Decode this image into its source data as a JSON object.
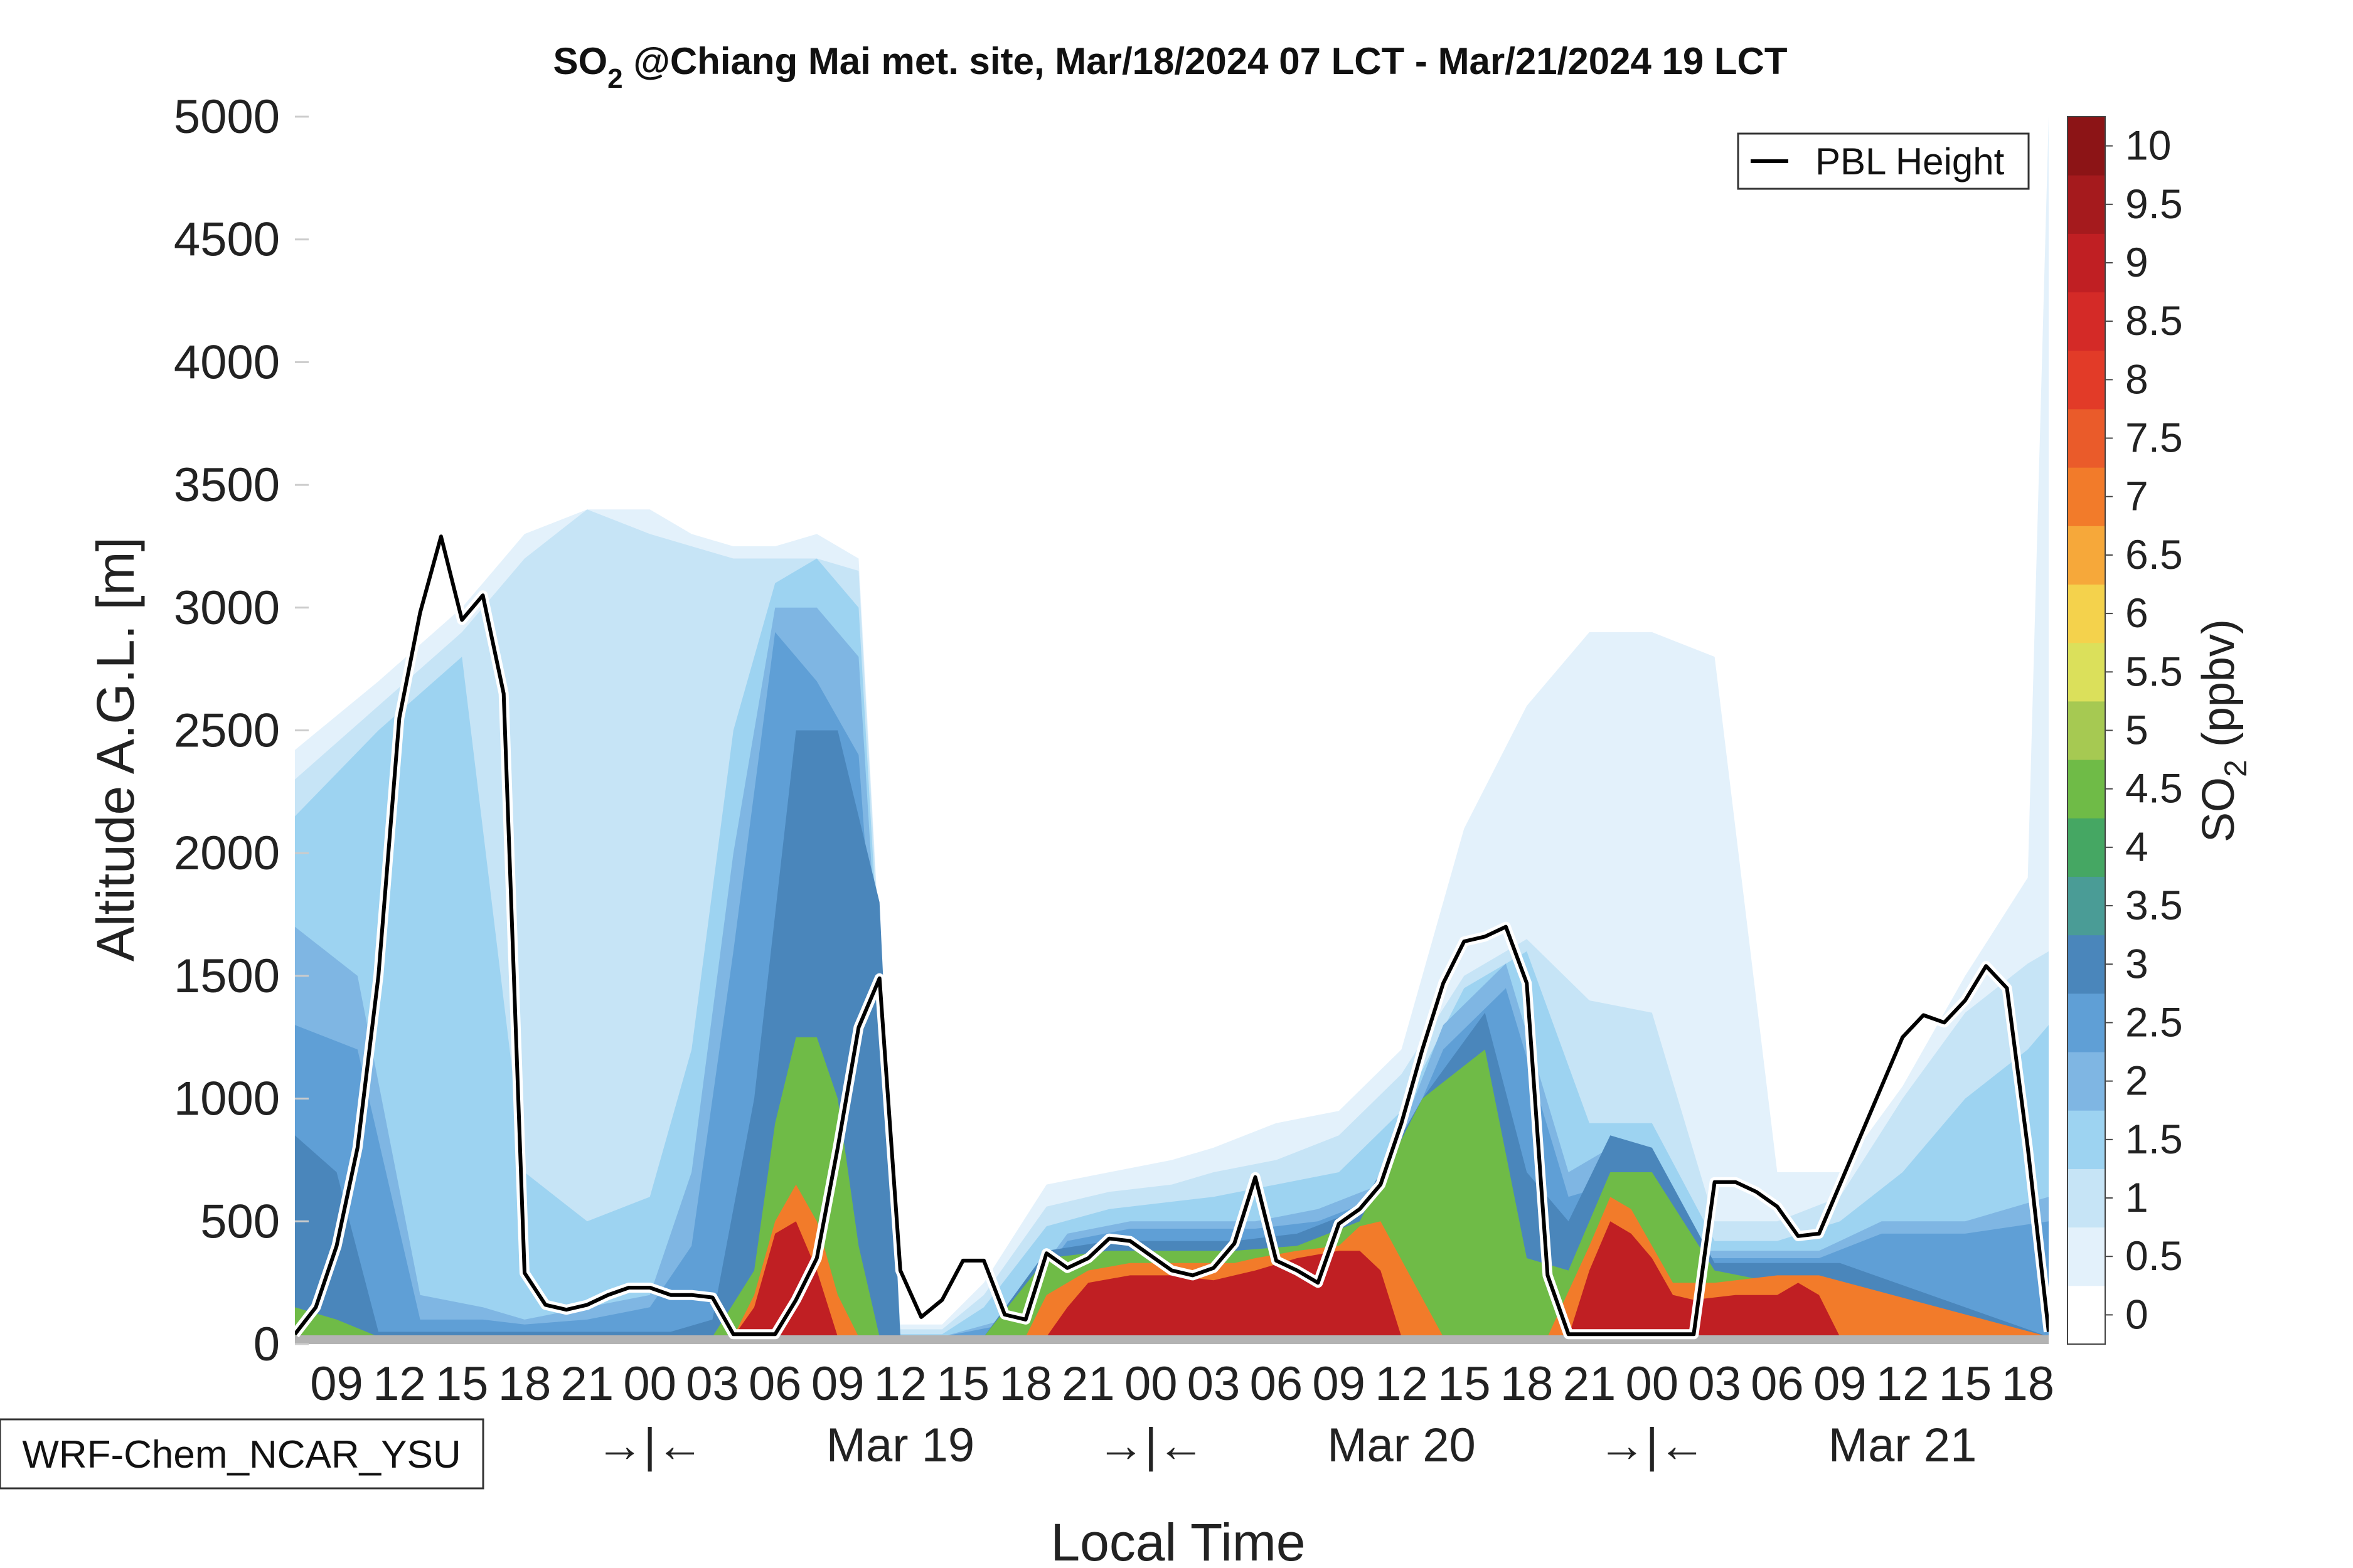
{
  "chart_data": {
    "type": "contour",
    "title_parts": [
      "SO",
      "2",
      " @Chiang Mai met. site, Mar/18/2024 07 LCT - Mar/21/2024 19 LCT"
    ],
    "title": "SO2 @Chiang Mai met. site, Mar/18/2024 07 LCT - Mar/21/2024 19 LCT",
    "xlabel": "Local Time",
    "ylabel": "Altitude A.G.L. [m]",
    "colorbar_label_parts": [
      "SO",
      "2",
      " (ppbv)"
    ],
    "xlim_hours": [
      0,
      84
    ],
    "ylim": [
      0,
      5000
    ],
    "y_ticks": [
      "0",
      "500",
      "1000",
      "1500",
      "2000",
      "2500",
      "3000",
      "3500",
      "4000",
      "4500",
      "5000"
    ],
    "x_ticks": [
      {
        "hour": 2,
        "label": "09"
      },
      {
        "hour": 5,
        "label": "12"
      },
      {
        "hour": 8,
        "label": "15"
      },
      {
        "hour": 11,
        "label": "18"
      },
      {
        "hour": 14,
        "label": "21"
      },
      {
        "hour": 17,
        "label": "00"
      },
      {
        "hour": 20,
        "label": "03"
      },
      {
        "hour": 23,
        "label": "06"
      },
      {
        "hour": 26,
        "label": "09"
      },
      {
        "hour": 29,
        "label": "12"
      },
      {
        "hour": 32,
        "label": "15"
      },
      {
        "hour": 35,
        "label": "18"
      },
      {
        "hour": 38,
        "label": "21"
      },
      {
        "hour": 41,
        "label": "00"
      },
      {
        "hour": 44,
        "label": "03"
      },
      {
        "hour": 47,
        "label": "06"
      },
      {
        "hour": 50,
        "label": "09"
      },
      {
        "hour": 53,
        "label": "12"
      },
      {
        "hour": 56,
        "label": "15"
      },
      {
        "hour": 59,
        "label": "18"
      },
      {
        "hour": 62,
        "label": "21"
      },
      {
        "hour": 65,
        "label": "00"
      },
      {
        "hour": 68,
        "label": "03"
      },
      {
        "hour": 71,
        "label": "06"
      },
      {
        "hour": 74,
        "label": "09"
      },
      {
        "hour": 77,
        "label": "12"
      },
      {
        "hour": 80,
        "label": "15"
      },
      {
        "hour": 83,
        "label": "18"
      }
    ],
    "day_labels": [
      {
        "hour": 29,
        "label": "Mar 19"
      },
      {
        "hour": 53,
        "label": "Mar 20"
      },
      {
        "hour": 77,
        "label": "Mar 21"
      }
    ],
    "midnight_markers": [
      {
        "hour": 17,
        "label": "→|←"
      },
      {
        "hour": 41,
        "label": "→|←"
      },
      {
        "hour": 65,
        "label": "→|←"
      }
    ],
    "legend": {
      "entries": [
        "PBL Height"
      ],
      "position": "top-right"
    },
    "model_label": "WRF-Chem_NCAR_YSU",
    "colorbar": {
      "levels": [
        0,
        0.5,
        1,
        1.5,
        2,
        2.5,
        3,
        3.5,
        4,
        4.5,
        5,
        5.5,
        6,
        6.5,
        7,
        7.5,
        8,
        8.5,
        9,
        9.5,
        10,
        10.5
      ],
      "colors": [
        "#ffffff",
        "#e3f1fb",
        "#c6e4f6",
        "#9dd3f1",
        "#7fb6e3",
        "#5f9fd6",
        "#4a86bb",
        "#4a9c96",
        "#45a763",
        "#6fbb47",
        "#a6c952",
        "#dbe05b",
        "#f4d24c",
        "#f6a83a",
        "#f27b2a",
        "#ea5b2a",
        "#e23b28",
        "#d42a27",
        "#c01f23",
        "#a51a1d",
        "#8c1416"
      ],
      "tick_labels": [
        "0",
        "0.5",
        "1",
        "1.5",
        "2",
        "2.5",
        "3",
        "3.5",
        "4",
        "4.5",
        "5",
        "5.5",
        "6",
        "6.5",
        "7",
        "7.5",
        "8",
        "8.5",
        "9",
        "9.5",
        "10"
      ]
    },
    "pbl_height": {
      "name": "PBL Height",
      "hours": [
        0,
        1,
        2,
        3,
        4,
        5,
        6,
        7,
        8,
        9,
        10,
        11,
        12,
        13,
        14,
        15,
        16,
        17,
        18,
        19,
        20,
        21,
        22,
        23,
        24,
        25,
        26,
        27,
        28,
        29,
        30,
        31,
        32,
        33,
        34,
        35,
        36,
        37,
        38,
        39,
        40,
        41,
        42,
        43,
        44,
        45,
        46,
        47,
        48,
        49,
        50,
        51,
        52,
        53,
        54,
        55,
        56,
        57,
        58,
        59,
        60,
        61,
        62,
        63,
        64,
        65,
        66,
        67,
        68,
        69,
        70,
        71,
        72,
        73,
        74,
        75,
        76,
        77,
        78,
        79,
        80,
        81,
        82,
        83,
        84
      ],
      "values": [
        40,
        150,
        400,
        800,
        1500,
        2550,
        2980,
        3290,
        2950,
        3050,
        2650,
        290,
        160,
        140,
        160,
        200,
        230,
        230,
        200,
        200,
        190,
        40,
        40,
        40,
        180,
        350,
        800,
        1290,
        1490,
        300,
        110,
        180,
        340,
        340,
        120,
        100,
        370,
        310,
        350,
        430,
        420,
        360,
        300,
        280,
        310,
        410,
        680,
        340,
        300,
        250,
        490,
        550,
        650,
        900,
        1200,
        1470,
        1640,
        1660,
        1700,
        1470,
        280,
        40,
        40,
        40,
        40,
        40,
        40,
        40,
        660,
        660,
        620,
        560,
        440,
        450,
        650,
        850,
        1050,
        1250,
        1340,
        1310,
        1400,
        1540,
        1450,
        800,
        50
      ]
    },
    "so2_field_estimate": {
      "description": "Approximate SO2 (ppbv) band boundaries read from the filled contours, in data units (hour, altitude m)",
      "bands": [
        {
          "level": 0.5,
          "hours": [
            0,
            4,
            8,
            11,
            14,
            17,
            19,
            21,
            23,
            25,
            27,
            29,
            31,
            33,
            36,
            39,
            42,
            44,
            47,
            50,
            53,
            56,
            59,
            62,
            65,
            68,
            71,
            74,
            77,
            80,
            83,
            84
          ],
          "tops": [
            2420,
            2700,
            3000,
            3300,
            3400,
            3400,
            3300,
            3250,
            3250,
            3300,
            3200,
            80,
            80,
            250,
            650,
            700,
            750,
            800,
            900,
            950,
            1200,
            2100,
            2600,
            2900,
            2900,
            2800,
            700,
            700,
            1050,
            1500,
            1900,
            5000
          ]
        },
        {
          "level": 1.0,
          "hours": [
            0,
            4,
            8,
            11,
            14,
            17,
            19,
            21,
            23,
            25,
            27,
            29,
            31,
            33,
            36,
            39,
            42,
            44,
            47,
            50,
            53,
            56,
            59,
            62,
            65,
            68,
            71,
            74,
            77,
            80,
            83,
            84
          ],
          "tops": [
            2300,
            2600,
            2900,
            3200,
            3400,
            3300,
            3250,
            3200,
            3200,
            3200,
            3150,
            60,
            60,
            200,
            560,
            620,
            650,
            700,
            750,
            850,
            1100,
            1500,
            1650,
            1400,
            1350,
            500,
            500,
            600,
            1000,
            1350,
            1550,
            1600
          ]
        },
        {
          "level": 1.5,
          "hours": [
            0,
            4,
            8,
            11,
            14,
            17,
            19,
            21,
            23,
            25,
            27,
            29,
            31,
            33,
            36,
            39,
            42,
            44,
            47,
            50,
            53,
            56,
            59,
            62,
            65,
            68,
            71,
            74,
            77,
            80,
            83,
            84
          ],
          "tops": [
            2150,
            2500,
            2800,
            700,
            500,
            600,
            1200,
            2500,
            3100,
            3200,
            3000,
            40,
            40,
            150,
            480,
            550,
            580,
            600,
            650,
            700,
            950,
            1450,
            1600,
            900,
            900,
            420,
            420,
            500,
            700,
            1000,
            1200,
            1300
          ]
        },
        {
          "level": 2.0,
          "hours": [
            0,
            3,
            6,
            9,
            11,
            14,
            17,
            19,
            21,
            23,
            25,
            27,
            29,
            31,
            34,
            37,
            40,
            43,
            46,
            49,
            52,
            55,
            58,
            61,
            63,
            65,
            67,
            70,
            73,
            76,
            80,
            84
          ],
          "tops": [
            1700,
            1500,
            200,
            150,
            100,
            150,
            200,
            700,
            2000,
            3000,
            3000,
            2800,
            30,
            30,
            100,
            450,
            500,
            500,
            500,
            550,
            650,
            1300,
            1550,
            700,
            800,
            700,
            380,
            380,
            380,
            500,
            500,
            600
          ]
        },
        {
          "level": 2.5,
          "hours": [
            0,
            3,
            6,
            9,
            11,
            14,
            17,
            19,
            21,
            23,
            25,
            27,
            29,
            31,
            34,
            37,
            40,
            43,
            46,
            49,
            52,
            55,
            58,
            61,
            63,
            65,
            67,
            70,
            73,
            76,
            80,
            84
          ],
          "tops": [
            1300,
            1200,
            100,
            100,
            80,
            100,
            150,
            400,
            1600,
            2900,
            2700,
            2400,
            30,
            30,
            80,
            420,
            470,
            470,
            470,
            500,
            600,
            1200,
            1450,
            600,
            650,
            650,
            350,
            350,
            350,
            450,
            450,
            500
          ]
        },
        {
          "level": 3.0,
          "hours": [
            0,
            2,
            4,
            6,
            9,
            12,
            15,
            18,
            20,
            22,
            24,
            26,
            28,
            29,
            31,
            33,
            36,
            39,
            42,
            45,
            48,
            51,
            54,
            57,
            59,
            61,
            63,
            65,
            68,
            71,
            74,
            84
          ],
          "tops": [
            850,
            700,
            50,
            50,
            50,
            50,
            50,
            50,
            100,
            1000,
            2500,
            2500,
            1800,
            30,
            30,
            30,
            380,
            420,
            420,
            420,
            450,
            550,
            1000,
            1350,
            700,
            500,
            850,
            800,
            330,
            330,
            330,
            30
          ]
        },
        {
          "level": 4.5,
          "hours": [
            0,
            2,
            4,
            6,
            9,
            12,
            15,
            18,
            20,
            22,
            23,
            24,
            25,
            26,
            27,
            28,
            30,
            33,
            36,
            39,
            42,
            45,
            48,
            51,
            54,
            57,
            59,
            61,
            63,
            65,
            68,
            84
          ],
          "tops": [
            150,
            100,
            30,
            30,
            30,
            30,
            30,
            30,
            30,
            300,
            900,
            1250,
            1250,
            1000,
            400,
            30,
            30,
            30,
            350,
            380,
            380,
            380,
            400,
            500,
            1000,
            1200,
            350,
            300,
            700,
            700,
            300,
            30
          ]
        },
        {
          "level": 7.0,
          "hours": [
            0,
            20,
            21,
            22,
            23,
            24,
            25,
            26,
            27,
            30,
            35,
            36,
            38,
            40,
            43,
            45,
            46,
            48,
            50,
            51,
            52,
            55,
            60,
            62,
            63,
            64,
            65,
            66,
            68,
            71,
            73,
            84
          ],
          "tops": [
            30,
            30,
            30,
            200,
            500,
            650,
            500,
            200,
            30,
            30,
            30,
            200,
            300,
            330,
            330,
            330,
            350,
            380,
            400,
            480,
            500,
            30,
            30,
            400,
            600,
            550,
            400,
            250,
            250,
            280,
            280,
            30
          ]
        },
        {
          "level": 9.0,
          "hours": [
            0,
            21,
            22,
            23,
            24,
            25,
            26,
            36,
            37,
            38,
            40,
            42,
            44,
            46,
            48,
            50,
            51,
            52,
            53,
            61,
            62,
            63,
            64,
            65,
            66,
            67,
            69,
            71,
            72,
            73,
            74,
            84
          ],
          "tops": [
            30,
            30,
            150,
            450,
            500,
            300,
            30,
            30,
            150,
            250,
            280,
            280,
            260,
            300,
            350,
            380,
            380,
            300,
            30,
            30,
            300,
            500,
            450,
            350,
            200,
            180,
            200,
            200,
            250,
            200,
            30,
            30
          ]
        }
      ]
    }
  }
}
